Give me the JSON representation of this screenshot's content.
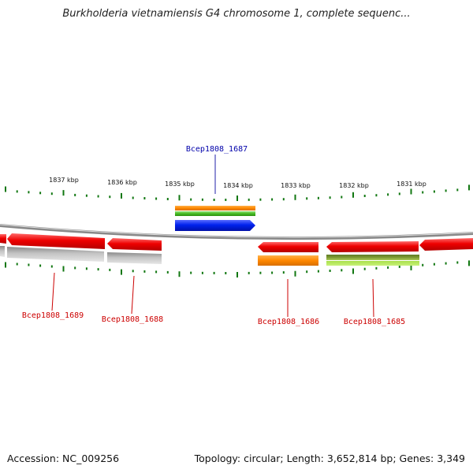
{
  "title": "Burkholderia vietnamiensis G4 chromosome 1, complete sequenc...",
  "footer": {
    "accession": "Accession: NC_009256",
    "summary": "Topology: circular; Length: 3,652,814 bp; Genes: 3,349"
  },
  "ruler": {
    "ticks": [
      {
        "label": "1837 kbp",
        "kbp": 1837
      },
      {
        "label": "1836 kbp",
        "kbp": 1836
      },
      {
        "label": "1835 kbp",
        "kbp": 1835
      },
      {
        "label": "1834 kbp",
        "kbp": 1834
      },
      {
        "label": "1833 kbp",
        "kbp": 1833
      },
      {
        "label": "1832 kbp",
        "kbp": 1832
      },
      {
        "label": "1831 kbp",
        "kbp": 1831
      }
    ]
  },
  "genes": [
    {
      "name": "Bcep1808_1687",
      "strand": "+",
      "color": "#0022ee",
      "label_color": "#0000aa"
    },
    {
      "name": "Bcep1808_1689",
      "strand": "-",
      "color": "#ee0000",
      "label_color": "#cc0000"
    },
    {
      "name": "Bcep1808_1688",
      "strand": "-",
      "color": "#ee0000",
      "label_color": "#cc0000"
    },
    {
      "name": "Bcep1808_1686",
      "strand": "-",
      "color": "#ee0000",
      "label_color": "#cc0000"
    },
    {
      "name": "Bcep1808_1685",
      "strand": "-",
      "color": "#ee0000",
      "label_color": "#cc0000"
    }
  ],
  "colors": {
    "backbone": "#888888",
    "tick": "#117711",
    "forward_cds": "#0022ee",
    "reverse_cds": "#ee0000",
    "orange_feature": "#ff8800",
    "green_feature": "#44bb22",
    "gray_feature": "#bbbbbb",
    "olive_feature": "#778833"
  }
}
